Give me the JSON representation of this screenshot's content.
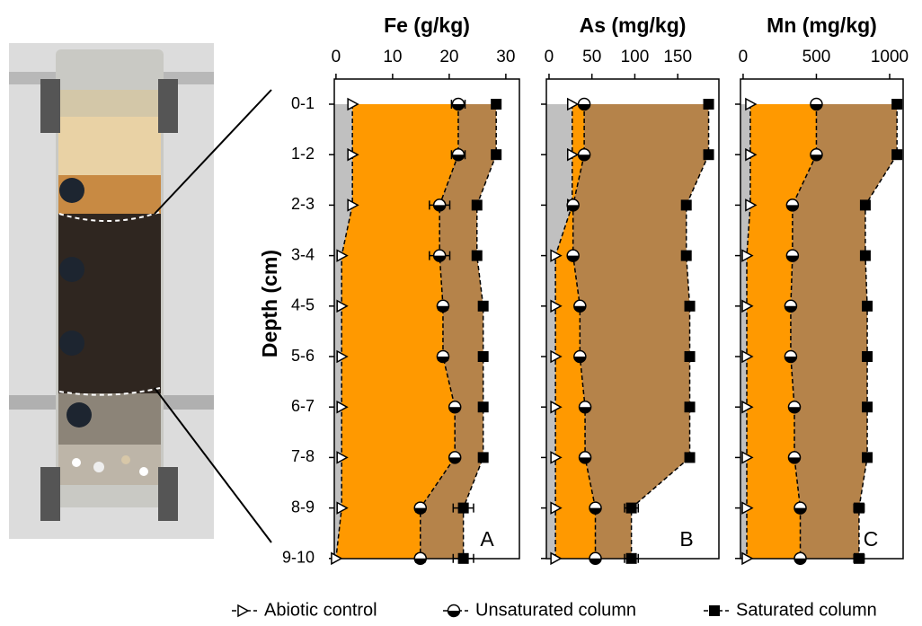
{
  "chart_data": [
    {
      "type": "line",
      "title": "Fe (g/kg)",
      "panel_label": "A",
      "y_label": "Depth (cm)",
      "categories": [
        "0-1",
        "1-2",
        "2-3",
        "3-4",
        "4-5",
        "5-6",
        "6-7",
        "7-8",
        "8-9",
        "9-10"
      ],
      "xlim": [
        -0.3,
        32.4
      ],
      "xticks": [
        0,
        10,
        20,
        30
      ],
      "series": [
        {
          "name": "Abiotic control",
          "marker": "triangle",
          "color": "#c0c0c0",
          "values": [
            2.9,
            2.9,
            2.9,
            1,
            1,
            1,
            1,
            1,
            1,
            0
          ]
        },
        {
          "name": "Unsaturated column",
          "marker": "half-circle",
          "color": "#ff9900",
          "values": [
            21.6,
            21.6,
            18.3,
            18.3,
            18.9,
            18.9,
            21,
            21,
            14.9,
            14.9
          ],
          "errors": [
            1.2,
            1.2,
            1.8,
            1.8,
            0.8,
            0.8,
            0.5,
            0.5,
            0.8,
            0.8
          ]
        },
        {
          "name": "Saturated column",
          "marker": "square",
          "color": "#b5834a",
          "values": [
            28.3,
            28.3,
            24.9,
            24.9,
            26,
            26,
            26,
            26,
            22.5,
            22.5
          ],
          "errors": [
            0.5,
            0.5,
            0.5,
            0.5,
            0.5,
            0.5,
            0.5,
            0.5,
            1.8,
            1.8
          ]
        }
      ]
    },
    {
      "type": "line",
      "title": "As (mg/kg)",
      "panel_label": "B",
      "xlim": [
        -3.1,
        198
      ],
      "xticks": [
        0,
        50,
        100,
        150
      ],
      "series": [
        {
          "color": "#c0c0c0",
          "values": [
            27,
            27,
            27,
            7.5,
            7.5,
            7.5,
            7.5,
            7.5,
            7.5,
            7.5
          ]
        },
        {
          "color": "#ff9900",
          "values": [
            41,
            41,
            28,
            28,
            36,
            36,
            42,
            42,
            54,
            54
          ],
          "errors": [
            2,
            2,
            2,
            2,
            2,
            2,
            2,
            2,
            2,
            2
          ]
        },
        {
          "color": "#b5834a",
          "values": [
            186,
            186,
            160,
            160,
            164,
            164,
            164,
            164,
            96,
            96
          ],
          "errors": [
            4,
            4,
            3,
            3,
            3,
            3,
            3,
            3,
            8,
            8
          ]
        }
      ]
    },
    {
      "type": "line",
      "title": "Mn (mg/kg)",
      "panel_label": "C",
      "xlim": [
        -18,
        1092
      ],
      "xticks": [
        0,
        500,
        1000
      ],
      "series": [
        {
          "color": "#c0c0c0",
          "values": [
            49,
            49,
            49,
            25,
            25,
            25,
            25,
            25,
            25,
            25
          ]
        },
        {
          "color": "#ff9900",
          "values": [
            500,
            500,
            337,
            337,
            325,
            325,
            350,
            350,
            390,
            390
          ],
          "errors": [
            10,
            10,
            25,
            25,
            10,
            10,
            10,
            10,
            10,
            10
          ]
        },
        {
          "color": "#b5834a",
          "values": [
            1050,
            1050,
            834,
            834,
            847,
            847,
            847,
            847,
            791,
            791
          ],
          "errors": [
            20,
            20,
            15,
            15,
            15,
            15,
            15,
            15,
            35,
            35
          ]
        }
      ]
    }
  ]
}
